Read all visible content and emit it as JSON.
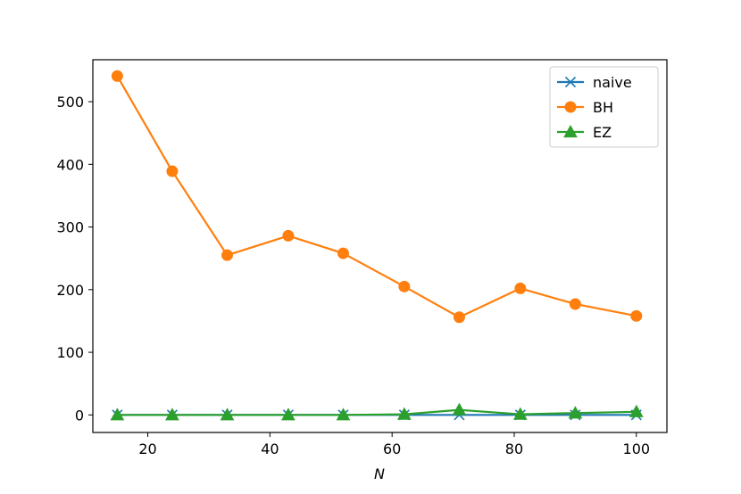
{
  "chart_data": {
    "type": "line",
    "title": "",
    "xlabel": "N",
    "ylabel": "",
    "xlim": [
      11,
      105
    ],
    "ylim": [
      -28,
      567
    ],
    "xticks": [
      20,
      40,
      60,
      80,
      100
    ],
    "yticks": [
      0,
      100,
      200,
      300,
      400,
      500
    ],
    "grid": false,
    "legend_position": "top-right",
    "x": [
      15,
      24,
      33,
      43,
      52,
      62,
      71,
      81,
      90,
      100
    ],
    "series": [
      {
        "name": "naive",
        "color": "#1f77b4",
        "marker": "x",
        "values": [
          0,
          0,
          0,
          0,
          0,
          0,
          0,
          0,
          0,
          0
        ]
      },
      {
        "name": "BH",
        "color": "#ff7f0e",
        "marker": "o",
        "values": [
          541,
          389,
          255,
          286,
          258,
          205,
          156,
          202,
          177,
          158
        ]
      },
      {
        "name": "EZ",
        "color": "#2ca02c",
        "marker": "^",
        "values": [
          0,
          0,
          0,
          0,
          0,
          1,
          8,
          1,
          3,
          5
        ]
      }
    ]
  }
}
